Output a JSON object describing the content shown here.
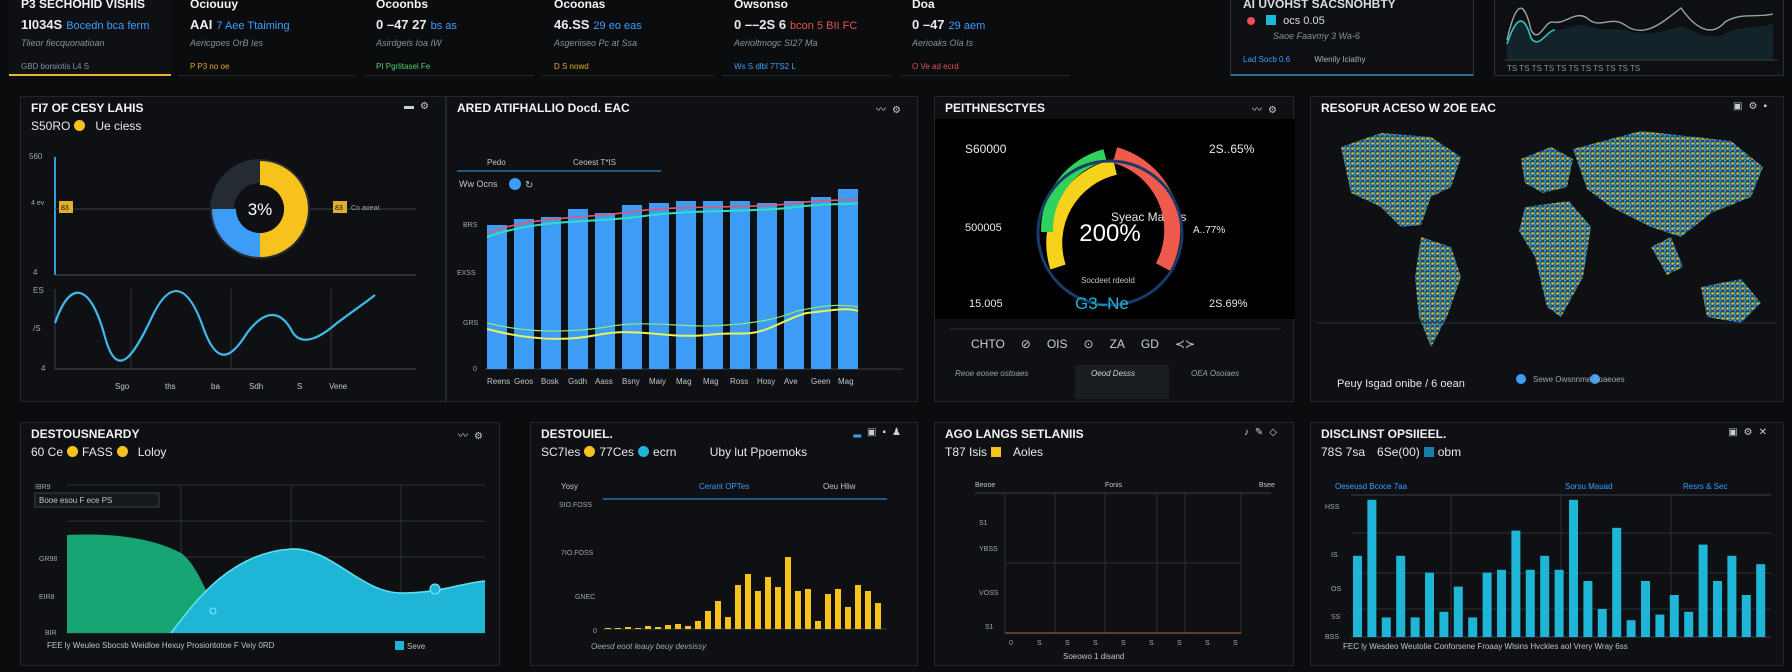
{
  "kpis": [
    {
      "title": "P3 SECHOHID VISHIS",
      "value": "1I034S",
      "accent": "Bocedn bca ferm",
      "sub": "Tlieor fiecquonatioan",
      "foot": "GBD    borsiotis L4 S"
    },
    {
      "title": "Ociouuy",
      "value": "AAI",
      "accent": "7 Aee Ttaiming",
      "sub": "Aericgoes OrB Ies",
      "foot": "P  P3   no oe"
    },
    {
      "title": "Ocoonbs",
      "value": "0 –47 27",
      "accent": "bs as",
      "sub": "Asirdgels  Ioa  IW",
      "foot": "PI  Pgrlitasel  Fe"
    },
    {
      "title": "Ocoonas",
      "value": "46.SS",
      "accent": "29  eo eas",
      "sub": "Asgeriiseo Pc at Ssa",
      "foot": "D    S nowd"
    },
    {
      "title": "Owsonso",
      "value": "0 ––2S 6",
      "accent": "bcon 5 BII FC",
      "sub": "Aerioltmogc SI27 Ma",
      "foot": "Ws  S dlbl  7TS2 L"
    },
    {
      "title": "Doa",
      "value": "0 –47",
      "accent": "29 aem",
      "sub": "Aerioaks Ola  Is",
      "foot": "O  Ve   ad  ecrd"
    }
  ],
  "legend": {
    "title": "AI UVOHST SACSNOHBTY",
    "row1": "ocs 0.05",
    "row2": "Saoe Faavmy 3 Wa-6",
    "foot_a": "Lad Socb  0.6",
    "foot_b": "Wlenily Iciathy"
  },
  "spark": {
    "ticks": "TS  TS TS  TS   TS TS   TS TS  TS  TS  TS"
  },
  "p1": {
    "title": "FI7 OF CESY LAHIS",
    "sub_val": "S50RO",
    "sub_txt": "Ue ciess",
    "donut_label": "3%",
    "ytick1": "560",
    "ytick2": "4",
    "lbl_l": "4 ev",
    "lbl_r": "Co aoeat",
    "box_l": "83",
    "box_r": "83",
    "xlabels": [
      "Sgo",
      "ths",
      "ba",
      "Sdh",
      "S",
      "Vene"
    ],
    "ylabels2": [
      "ES",
      "/S",
      "4"
    ]
  },
  "p2": {
    "title": "ARED ATIFHALLIO Docd. EAC",
    "leg1": "Pedo",
    "leg2": "Ceoest T*IS",
    "leg3": "Ww Ocns",
    "xlabels": [
      "Reens",
      "Geos",
      "Bosk",
      "Gsdh",
      "Aass",
      "Bsny",
      "Maiy",
      "Mag",
      "Mag",
      "Ross",
      "Hosy",
      "Ave",
      "Geen",
      "Mag"
    ],
    "yl": [
      "BRS",
      "EXSS",
      "GRS",
      "0"
    ]
  },
  "p3": {
    "title": "PEITHNESCTYES",
    "center_lbl": "Syeac Maeles",
    "value": "200%",
    "l1": "S60000",
    "l2": "500005",
    "l3": "15.005",
    "r1": "2S..65%",
    "r2": "A..77%",
    "r3": "2S.69%",
    "sub_lbl": "Socdeet rdeold",
    "sub_val": "G3–Ne",
    "buttons": [
      "CHTO",
      "⊘",
      "OIS",
      "⊙",
      "ZA",
      "GD",
      "≺≻"
    ],
    "ft1": "Reoe eosee ostoaes",
    "ft2": "Oeod Desss",
    "ft3": "OEA Osoiaes"
  },
  "p4": {
    "title": "RESOFUR ACESO W 2OE EAC",
    "foot": "Peuy Isgad onibe / 6 oean",
    "foot_r": "Sewe  Owsnnme  Aoaeoes"
  },
  "p5": {
    "title": "DESTOUSNEARDY",
    "sub_val": "60 Ce",
    "sub_b": "FASS",
    "sub_c": "Loloy",
    "box": "Booe esou  F ece  PS",
    "yl": [
      "IBR9",
      "GR98",
      "EIR8",
      "BIR"
    ],
    "foot": "FEE ly Weuleo Sbocsb Weidloe Hexuy Prosiontotoe F Veiy 0RD",
    "foot_leg": "Seve"
  },
  "p6": {
    "title": "DESTOUIEL.",
    "sub_a": "SC7Ies",
    "sub_b": "77Ces",
    "sub_c": "ecrn",
    "sub_d": "Uby lut Ppoemoks",
    "h1": "Yosy",
    "h2": "Cerant OPTes",
    "h3": "Oeu Hliw",
    "yl": [
      "SIO.FOSS",
      "7IO.FOSS",
      "GNEC",
      "0"
    ],
    "foot": "Oeesd eoot  leauy beuy devsissy",
    "bars": [
      0.01,
      0.01,
      0.02,
      0.01,
      0.03,
      0.02,
      0.04,
      0.05,
      0.03,
      0.08,
      0.18,
      0.28,
      0.12,
      0.44,
      0.55,
      0.38,
      0.52,
      0.42,
      0.72,
      0.38,
      0.4,
      0.08,
      0.35,
      0.4,
      0.22,
      0.44,
      0.38,
      0.26
    ]
  },
  "p7": {
    "title": "AGO LANGS SETLANIIS",
    "sub_a": "T87 Isis",
    "sub_b": "Aoles",
    "h1": "Beooe",
    "h2": "Fonis",
    "h3": "Bsee",
    "yl": [
      "S1",
      "YBSS",
      "VOSS",
      "S1"
    ],
    "xl": [
      "0",
      "S",
      "S",
      "S",
      "S",
      "S",
      "S",
      "S",
      "S"
    ],
    "foot": "Soeowo  1  disand"
  },
  "p8": {
    "title": "DISCLINST OPSIIEEL.",
    "sub_a": "78S 7sa",
    "sub_b": "6Se(00)",
    "sub_c": "obm",
    "h1": "Oeseusd Bcoce 7aa",
    "h2": "Sorsu Mauad",
    "h3": "Resrs & Sec",
    "yl": [
      "HSS",
      "IS",
      "OS",
      "SS",
      "BSS"
    ],
    "foot": "FEC ly  Wesdeo Weutolie Conforsene Froaay Wlsins Hvckles aol Vrery      Wray 6ss",
    "bars": [
      0.58,
      0.98,
      0.14,
      0.58,
      0.14,
      0.46,
      0.18,
      0.36,
      0.14,
      0.46,
      0.48,
      0.76,
      0.48,
      0.58,
      0.48,
      0.98,
      0.4,
      0.2,
      0.78,
      0.12,
      0.4,
      0.16,
      0.3,
      0.18,
      0.66,
      0.4,
      0.58,
      0.3,
      0.52
    ]
  },
  "colors": {
    "blue": "#3d9cf5",
    "cyan": "#1fb5d6",
    "yellow": "#f7c21c",
    "green": "#17a673",
    "red": "#ef5a4d"
  }
}
